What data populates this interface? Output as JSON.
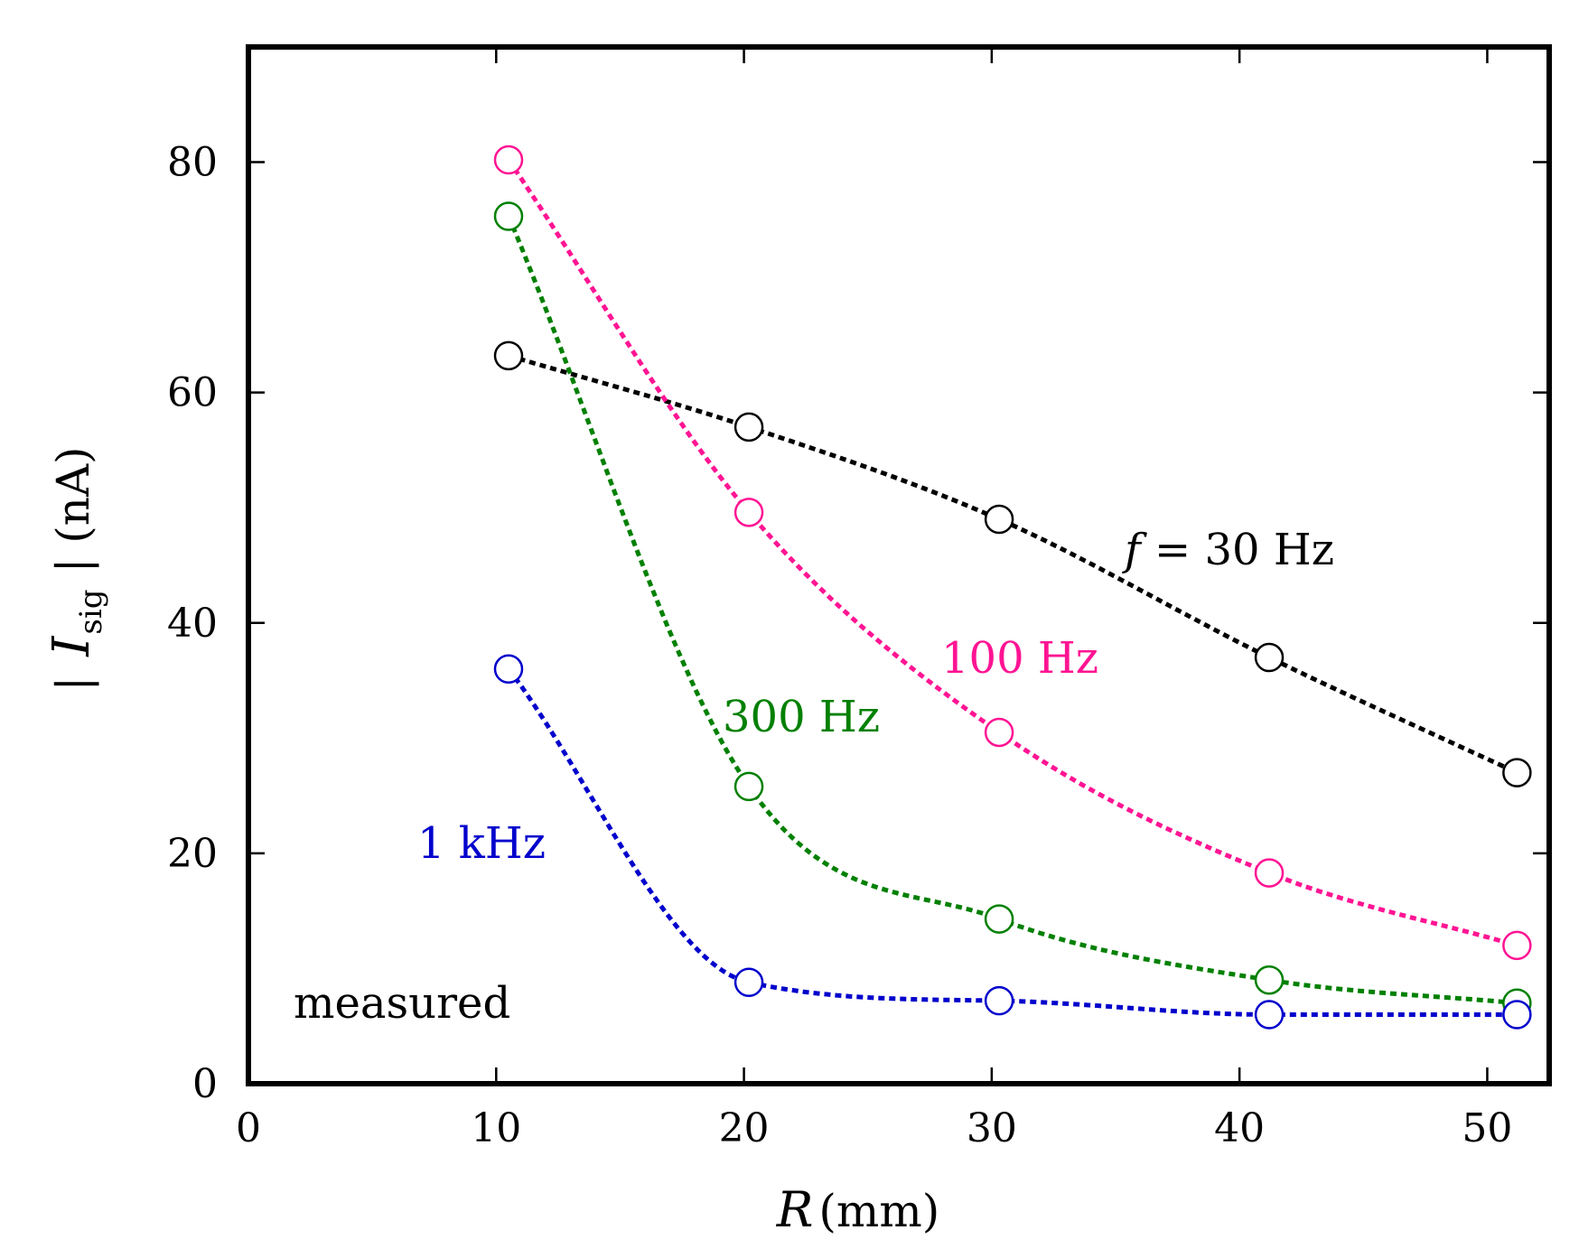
{
  "chart_data": {
    "type": "line",
    "title": "",
    "xlabel": "R (mm)",
    "xlabel_var": "R",
    "xlabel_unit": "(mm)",
    "ylabel_prefix": "|",
    "ylabel_var": "I",
    "ylabel_sub": "sig",
    "ylabel_suffix": "| (nA)",
    "xlim": [
      0,
      52.5
    ],
    "ylim": [
      0,
      90
    ],
    "xticks": [
      0,
      10,
      20,
      30,
      40,
      50
    ],
    "yticks": [
      0,
      20,
      40,
      60,
      80
    ],
    "grid": false,
    "annotation": "measured",
    "series": [
      {
        "name": "f = 30 Hz",
        "label_var": "f",
        "label_rest": " = 30 Hz",
        "color": "#000000",
        "x": [
          10.5,
          20.2,
          30.3,
          41.2,
          51.2
        ],
        "y": [
          63.2,
          57.0,
          49.0,
          37.0,
          27.0
        ]
      },
      {
        "name": "100 Hz",
        "label_var": "",
        "label_rest": "100 Hz",
        "color": "#ff1493",
        "x": [
          10.5,
          20.2,
          30.3,
          41.2,
          51.2
        ],
        "y": [
          80.2,
          49.6,
          30.5,
          18.3,
          12.0
        ]
      },
      {
        "name": "300 Hz",
        "label_var": "",
        "label_rest": "300 Hz",
        "color": "#008000",
        "x": [
          10.5,
          20.2,
          30.3,
          41.2,
          51.2
        ],
        "y": [
          75.3,
          25.8,
          14.3,
          9.0,
          7.0
        ]
      },
      {
        "name": "1 kHz",
        "label_var": "",
        "label_rest": "1 kHz",
        "color": "#0000cc",
        "x": [
          10.5,
          20.2,
          30.3,
          41.2,
          51.2
        ],
        "y": [
          36.0,
          8.8,
          7.2,
          6.0,
          6.0
        ]
      }
    ]
  }
}
